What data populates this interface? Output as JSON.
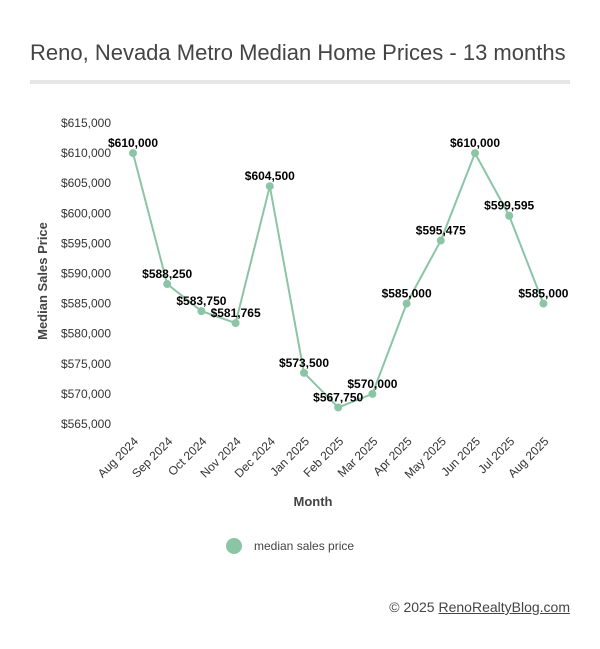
{
  "chart_data": {
    "type": "line",
    "title": "Reno, Nevada Metro Median Home Prices - 13 months",
    "xlabel": "Month",
    "ylabel": "Median Sales Price",
    "categories": [
      "Aug 2024",
      "Sep 2024",
      "Oct 2024",
      "Nov 2024",
      "Dec 2024",
      "Jan 2025",
      "Feb 2025",
      "Mar 2025",
      "Apr 2025",
      "May 2025",
      "Jun 2025",
      "Jul 2025",
      "Aug 2025"
    ],
    "series": [
      {
        "name": "median sales price",
        "color": "#8cc5a6",
        "values": [
          610000,
          588250,
          583750,
          581765,
          604500,
          573500,
          567750,
          570000,
          585000,
          595475,
          610000,
          599595,
          585000
        ],
        "labels": [
          "$610,000",
          "$588,250",
          "$583,750",
          "$581,765",
          "$604,500",
          "$573,500",
          "$567,750",
          "$570,000",
          "$585,000",
          "$595,475",
          "$610,000",
          "$599,595",
          "$585,000"
        ]
      }
    ],
    "yticks": [
      565000,
      570000,
      575000,
      580000,
      585000,
      590000,
      595000,
      600000,
      605000,
      610000,
      615000
    ],
    "ytick_labels": [
      "$565,000",
      "$570,000",
      "$575,000",
      "$580,000",
      "$585,000",
      "$590,000",
      "$595,000",
      "$600,000",
      "$605,000",
      "$610,000",
      "$615,000"
    ],
    "ylim": [
      565000,
      615000
    ],
    "grid": false,
    "legend_position": "bottom"
  },
  "footer": {
    "copyright": "© 2025 ",
    "link_text": "RenoRealtyBlog.com"
  }
}
